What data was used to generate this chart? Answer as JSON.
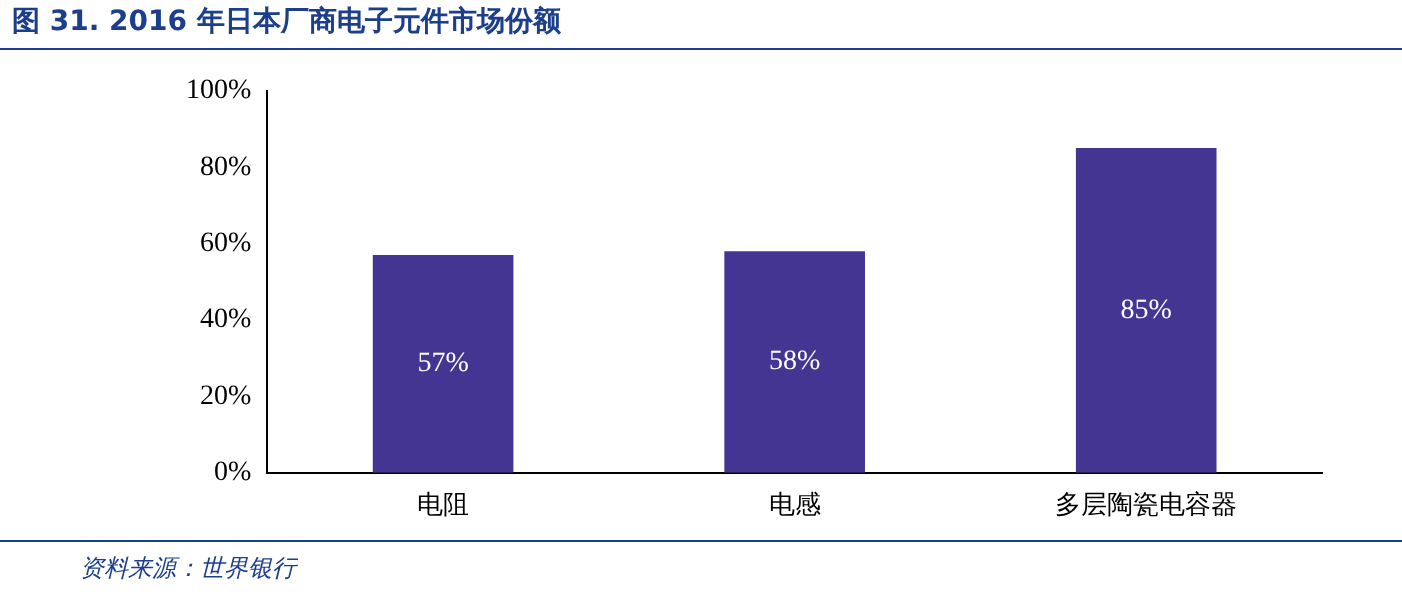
{
  "chart_data": {
    "type": "bar",
    "title": "图 31. 2016 年日本厂商电子元件市场份额",
    "categories": [
      "电阻",
      "电感",
      "多层陶瓷电容器"
    ],
    "values": [
      57,
      58,
      85
    ],
    "color": "#443592",
    "value_labels": [
      "57%",
      "58%",
      "85%"
    ],
    "ylim": [
      0,
      100
    ],
    "yticks": [
      {
        "value": 0,
        "label": "0%"
      },
      {
        "value": 20,
        "label": "20%"
      },
      {
        "value": 40,
        "label": "40%"
      },
      {
        "value": 60,
        "label": "60%"
      },
      {
        "value": 80,
        "label": "80%"
      },
      {
        "value": 100,
        "label": "100%"
      }
    ],
    "grid": false,
    "legend": false,
    "annotations": [
      "资料来源：世界银行"
    ]
  }
}
